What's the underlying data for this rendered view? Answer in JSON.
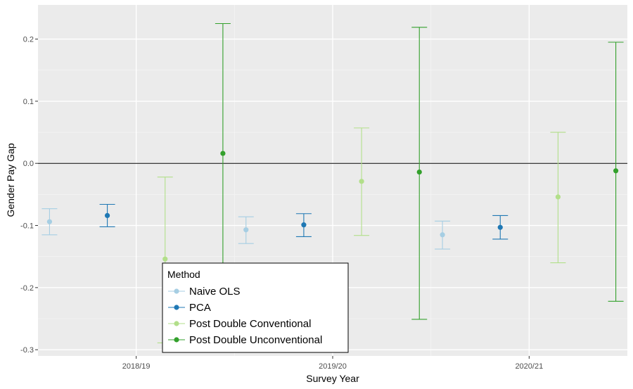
{
  "chart_data": {
    "type": "scatter",
    "subtype": "point-errorbar",
    "title": "",
    "xlabel": "Survey Year",
    "ylabel": "Gender Pay Gap",
    "categories": [
      "2018/19",
      "2019/20",
      "2020/21"
    ],
    "ylim": [
      -0.31,
      0.255
    ],
    "yticks": [
      -0.3,
      -0.2,
      -0.1,
      0.0,
      0.1,
      0.2
    ],
    "ytick_labels": [
      "-0.3",
      "-0.2",
      "-0.1",
      "0.0",
      "0.1",
      "0.2"
    ],
    "reference_line": 0.0,
    "grid": true,
    "legend": {
      "title": "Method",
      "position": "bottom-left-inside"
    },
    "series": [
      {
        "name": "Naive OLS",
        "color": "#a6cee3",
        "points": [
          {
            "x": "2018/19",
            "y": -0.094,
            "lower": -0.115,
            "upper": -0.073
          },
          {
            "x": "2019/20",
            "y": -0.107,
            "lower": -0.129,
            "upper": -0.086
          },
          {
            "x": "2020/21",
            "y": -0.115,
            "lower": -0.138,
            "upper": -0.093
          }
        ]
      },
      {
        "name": "PCA",
        "color": "#1f78b4",
        "points": [
          {
            "x": "2018/19",
            "y": -0.084,
            "lower": -0.102,
            "upper": -0.066
          },
          {
            "x": "2019/20",
            "y": -0.099,
            "lower": -0.118,
            "upper": -0.081
          },
          {
            "x": "2020/21",
            "y": -0.103,
            "lower": -0.122,
            "upper": -0.084
          }
        ]
      },
      {
        "name": "Post Double Conventional",
        "color": "#b2df8a",
        "points": [
          {
            "x": "2018/19",
            "y": -0.154,
            "lower": -0.289,
            "upper": -0.022
          },
          {
            "x": "2019/20",
            "y": -0.029,
            "lower": -0.116,
            "upper": 0.057
          },
          {
            "x": "2020/21",
            "y": -0.054,
            "lower": -0.16,
            "upper": 0.05
          }
        ]
      },
      {
        "name": "Post Double Unconventional",
        "color": "#33a02c",
        "points": [
          {
            "x": "2018/19",
            "y": 0.016,
            "lower": -0.194,
            "upper": 0.225
          },
          {
            "x": "2019/20",
            "y": -0.014,
            "lower": -0.251,
            "upper": 0.219
          },
          {
            "x": "2020/21",
            "y": -0.012,
            "lower": -0.222,
            "upper": 0.195
          }
        ]
      }
    ]
  }
}
